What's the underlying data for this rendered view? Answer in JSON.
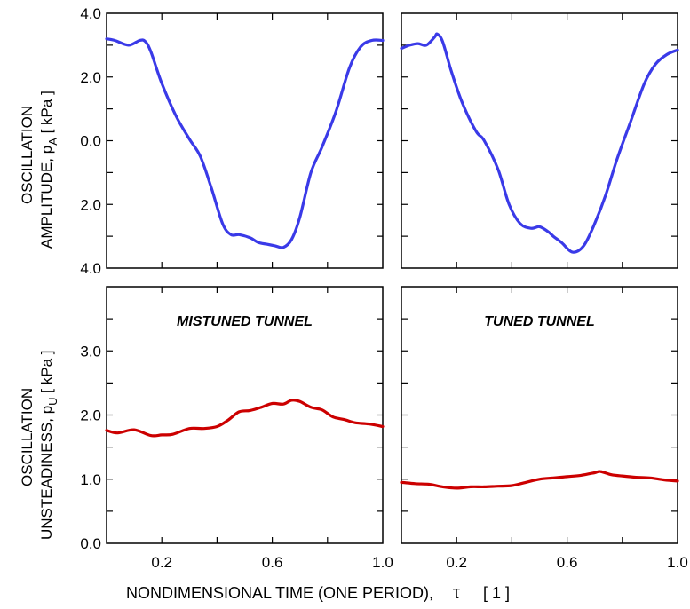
{
  "colors": {
    "amplitude": "#3a3ae8",
    "unsteadiness": "#cc0000",
    "axes": "#000000"
  },
  "labels": {
    "top_ylabel_line1": "OSCILLATION",
    "top_ylabel_line2": "AMPLITUDE, p",
    "top_ylabel_sub": "A",
    "top_ylabel_unit": "[ kPa ]",
    "bottom_ylabel_line1": "OSCILLATION",
    "bottom_ylabel_line2": "UNSTEADINESS, p",
    "bottom_ylabel_sub": "U",
    "bottom_ylabel_unit": "[ kPa ]",
    "xlabel": "NONDIMENSIONAL TIME  (ONE PERIOD),",
    "xlabel_symbol": "τ",
    "xlabel_unit": "[ 1 ]",
    "panel_left_title": "MISTUNED TUNNEL",
    "panel_right_title": "TUNED TUNNEL"
  },
  "chart_data": [
    {
      "type": "line",
      "panel": "top-left",
      "title": "",
      "xlim": [
        0,
        1
      ],
      "ylim": [
        -4,
        4
      ],
      "y_ticks": [
        {
          "v": 4,
          "label": "4.0"
        },
        {
          "v": 2,
          "label": "2.0"
        },
        {
          "v": 0,
          "label": "0.0"
        },
        {
          "v": -2,
          "label": "2.0"
        },
        {
          "v": -4,
          "label": "4.0"
        }
      ],
      "x_ticks": [],
      "grid": false,
      "series": [
        {
          "color": "amplitude",
          "x": [
            0,
            0.03,
            0.08,
            0.12,
            0.14,
            0.16,
            0.2,
            0.25,
            0.3,
            0.34,
            0.38,
            0.42,
            0.45,
            0.48,
            0.52,
            0.55,
            0.58,
            0.61,
            0.64,
            0.67,
            0.7,
            0.74,
            0.78,
            0.83,
            0.88,
            0.92,
            0.96,
            1.0
          ],
          "y": [
            3.2,
            3.15,
            3.0,
            3.15,
            3.12,
            2.8,
            1.8,
            0.8,
            0.05,
            -0.5,
            -1.5,
            -2.6,
            -2.95,
            -2.95,
            -3.05,
            -3.2,
            -3.25,
            -3.3,
            -3.35,
            -3.1,
            -2.4,
            -1.0,
            -0.2,
            0.9,
            2.3,
            2.95,
            3.15,
            3.15
          ]
        }
      ]
    },
    {
      "type": "line",
      "panel": "top-right",
      "title": "",
      "xlim": [
        0,
        1
      ],
      "ylim": [
        -4,
        4
      ],
      "y_ticks": [],
      "x_ticks": [],
      "grid": false,
      "series": [
        {
          "color": "amplitude",
          "x": [
            0,
            0.03,
            0.06,
            0.09,
            0.12,
            0.13,
            0.15,
            0.18,
            0.22,
            0.27,
            0.3,
            0.35,
            0.39,
            0.43,
            0.47,
            0.5,
            0.53,
            0.55,
            0.58,
            0.62,
            0.66,
            0.7,
            0.74,
            0.78,
            0.83,
            0.88,
            0.92,
            0.96,
            1.0
          ],
          "y": [
            2.9,
            3.0,
            3.05,
            3.0,
            3.25,
            3.35,
            3.1,
            2.2,
            1.2,
            0.3,
            0.0,
            -0.9,
            -2.0,
            -2.6,
            -2.75,
            -2.7,
            -2.85,
            -3.0,
            -3.2,
            -3.5,
            -3.3,
            -2.6,
            -1.7,
            -0.6,
            0.6,
            1.8,
            2.4,
            2.7,
            2.85
          ]
        }
      ]
    },
    {
      "type": "line",
      "panel": "bottom-left",
      "title": "MISTUNED TUNNEL",
      "xlim": [
        0,
        1
      ],
      "ylim": [
        0,
        4
      ],
      "y_ticks": [
        {
          "v": 0,
          "label": "0.0"
        },
        {
          "v": 1,
          "label": "1.0"
        },
        {
          "v": 2,
          "label": "2.0"
        },
        {
          "v": 3,
          "label": "3.0"
        }
      ],
      "x_ticks": [
        {
          "v": 0.2,
          "label": "0.2"
        },
        {
          "v": 0.6,
          "label": "0.6"
        },
        {
          "v": 1.0,
          "label": "1.0"
        }
      ],
      "grid": false,
      "series": [
        {
          "color": "unsteadiness",
          "x": [
            0,
            0.04,
            0.1,
            0.16,
            0.2,
            0.24,
            0.3,
            0.35,
            0.4,
            0.44,
            0.48,
            0.52,
            0.56,
            0.6,
            0.64,
            0.67,
            0.7,
            0.74,
            0.78,
            0.82,
            0.86,
            0.9,
            0.95,
            1.0
          ],
          "y": [
            1.76,
            1.72,
            1.77,
            1.68,
            1.69,
            1.7,
            1.79,
            1.79,
            1.82,
            1.92,
            2.05,
            2.07,
            2.12,
            2.18,
            2.17,
            2.23,
            2.21,
            2.12,
            2.08,
            1.97,
            1.93,
            1.88,
            1.86,
            1.82
          ]
        }
      ]
    },
    {
      "type": "line",
      "panel": "bottom-right",
      "title": "TUNED TUNNEL",
      "xlim": [
        0,
        1
      ],
      "ylim": [
        0,
        4
      ],
      "y_ticks": [],
      "x_ticks": [
        {
          "v": 0.2,
          "label": "0.2"
        },
        {
          "v": 0.6,
          "label": "0.6"
        },
        {
          "v": 1.0,
          "label": "1.0"
        }
      ],
      "grid": false,
      "series": [
        {
          "color": "unsteadiness",
          "x": [
            0,
            0.05,
            0.1,
            0.15,
            0.2,
            0.25,
            0.3,
            0.35,
            0.4,
            0.45,
            0.5,
            0.55,
            0.6,
            0.65,
            0.7,
            0.72,
            0.76,
            0.8,
            0.85,
            0.9,
            0.95,
            1.0
          ],
          "y": [
            0.95,
            0.93,
            0.92,
            0.88,
            0.86,
            0.88,
            0.88,
            0.89,
            0.9,
            0.95,
            1.0,
            1.02,
            1.04,
            1.06,
            1.1,
            1.12,
            1.07,
            1.05,
            1.03,
            1.02,
            0.99,
            0.97
          ]
        }
      ]
    }
  ]
}
